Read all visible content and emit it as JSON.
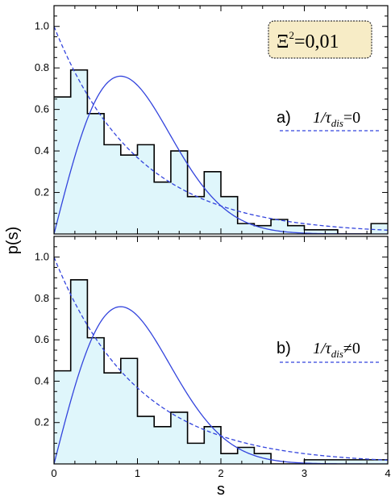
{
  "chart_data": {
    "type": "histogram-with-curves",
    "xlabel": "s",
    "ylabel": "p(s)",
    "xlim": [
      0,
      4
    ],
    "ylim": [
      0,
      1.1
    ],
    "xticks": [
      "0",
      "1",
      "2",
      "3",
      "4"
    ],
    "yticks": [
      "0.2",
      "0.4",
      "0.6",
      "0.8",
      "1.0"
    ],
    "annotation": {
      "xi": "Ξ",
      "sup": "2",
      "value": "=0,01"
    },
    "bin_width": 0.2,
    "panels": [
      {
        "label": "a)",
        "formula": {
          "prefix": "1/τ",
          "sub": "dis",
          "suffix": "=0"
        },
        "histogram": [
          0.66,
          0.79,
          0.58,
          0.43,
          0.38,
          0.43,
          0.25,
          0.4,
          0.18,
          0.3,
          0.18,
          0.05,
          0.04,
          0.07,
          0.04,
          0.02,
          0.02,
          0.0,
          0.0,
          0.05,
          0.05
        ]
      },
      {
        "label": "b)",
        "formula": {
          "prefix": "1/τ",
          "sub": "dis",
          "suffix": "≠0"
        },
        "histogram": [
          0.45,
          0.89,
          0.61,
          0.44,
          0.51,
          0.23,
          0.18,
          0.25,
          0.1,
          0.18,
          0.05,
          0.08,
          0.05,
          0.0,
          0.0,
          0.02,
          0.02,
          0.02,
          0.02,
          0.02
        ]
      }
    ],
    "curves": [
      {
        "formula": "exp(-s)",
        "style": "dashed",
        "color": "#3344dd"
      },
      {
        "formula": "(pi/2) s exp(-pi s^2 / 4)",
        "style": "solid",
        "color": "#3344dd"
      }
    ],
    "colors": {
      "fill": "#dff6fb",
      "histogram_line": "#000000",
      "curve": "#3344dd",
      "box_fill": "#f7ecc6",
      "box_border": "#333333"
    }
  }
}
